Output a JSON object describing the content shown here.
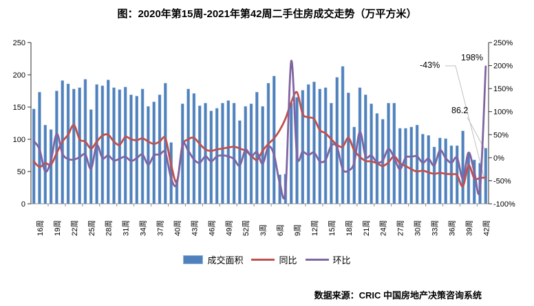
{
  "title": "图：2020年第15周-2021年第42周二手住房成交走势（万平方米）",
  "source": "数据来源：CRIC 中国房地产决策咨询系统",
  "legend": [
    {
      "label": "成交面积",
      "type": "bar"
    },
    {
      "label": "同比",
      "type": "line"
    },
    {
      "label": "环比",
      "type": "line"
    }
  ],
  "annotations": {
    "yoy_end": "-43%",
    "wow_end": "198%",
    "area_end": "86.2"
  },
  "colors": {
    "bar": "#4F81BD",
    "bar_border": "#95B3D7",
    "yoy_line": "#C0504D",
    "wow_line": "#8064A2",
    "leader": "#BFBFBF",
    "axis": "#2b2b2b",
    "category_axis": "#8c8c8c",
    "text": "#000000"
  },
  "chart_data": {
    "type": "bar+line",
    "title": "图：2020年第15周-2021年第42周二手住房成交走势（万平方米）",
    "left_axis": {
      "min": 0,
      "max": 250,
      "step": 50,
      "ticks": [
        "0",
        "50",
        "100",
        "150",
        "200",
        "250"
      ],
      "unit": "万平方米"
    },
    "right_axis": {
      "min": -100,
      "max": 250,
      "step": 50,
      "ticks": [
        "-100%",
        "-50%",
        "0%",
        "50%",
        "100%",
        "150%",
        "200%",
        "250%"
      ]
    },
    "x_tick_interval": 3,
    "x_tick_start_index": 1,
    "x_tick_labels": [
      "16周",
      "19周",
      "22周",
      "25周",
      "28周",
      "31周",
      "34周",
      "37周",
      "40周",
      "43周",
      "46周",
      "49周",
      "52周",
      "3周",
      "6周",
      "9周",
      "12周",
      "15周",
      "18周",
      "21周",
      "24周",
      "27周",
      "30周",
      "33周",
      "36周",
      "39周",
      "42周"
    ],
    "x_weeks": [
      "15周",
      "16周",
      "17周",
      "18周",
      "19周",
      "20周",
      "21周",
      "22周",
      "23周",
      "24周",
      "25周",
      "26周",
      "27周",
      "28周",
      "29周",
      "30周",
      "31周",
      "32周",
      "33周",
      "34周",
      "35周",
      "36周",
      "37周",
      "38周",
      "39周",
      "40周",
      "41周",
      "42周",
      "43周",
      "44周",
      "45周",
      "46周",
      "47周",
      "48周",
      "49周",
      "50周",
      "51周",
      "52周",
      "1周",
      "2周",
      "3周",
      "4周",
      "5周",
      "6周",
      "7周",
      "8周",
      "9周",
      "10周",
      "11周",
      "12周",
      "13周",
      "14周",
      "15周",
      "16周",
      "17周",
      "18周",
      "19周",
      "20周",
      "21周",
      "22周",
      "23周",
      "24周",
      "25周",
      "26周",
      "27周",
      "28周",
      "29周",
      "30周",
      "31周",
      "32周",
      "33周",
      "34周",
      "35周",
      "36周",
      "37周",
      "38周",
      "39周",
      "40周",
      "41周",
      "42周"
    ],
    "series": [
      {
        "name": "成交面积",
        "type": "bar",
        "axis": "left",
        "values": [
          147,
          173,
          122,
          115,
          175,
          191,
          186,
          178,
          180,
          193,
          146,
          185,
          183,
          192,
          180,
          177,
          181,
          169,
          167,
          178,
          151,
          158,
          169,
          187,
          95,
          37,
          155,
          178,
          171,
          152,
          156,
          144,
          148,
          156,
          160,
          156,
          129,
          151,
          155,
          173,
          151,
          187,
          198,
          45,
          46,
          156,
          165,
          176,
          185,
          189,
          178,
          180,
          156,
          196,
          213,
          172,
          119,
          180,
          169,
          155,
          140,
          131,
          156,
          156,
          117,
          117,
          119,
          122,
          108,
          106,
          88,
          102,
          101,
          90,
          90,
          113,
          79,
          68,
          63,
          86.2
        ]
      },
      {
        "name": "同比",
        "type": "line",
        "axis": "right",
        "values": [
          -8,
          -20,
          -12,
          -15,
          10,
          35,
          50,
          71,
          40,
          35,
          20,
          35,
          48,
          50,
          35,
          28,
          45,
          40,
          38,
          42,
          35,
          30,
          35,
          42,
          -15,
          -52,
          25,
          40,
          43,
          30,
          18,
          15,
          18,
          20,
          22,
          24,
          20,
          15,
          5,
          -5,
          15,
          30,
          42,
          60,
          85,
          120,
          142,
          95,
          88,
          84,
          60,
          53,
          40,
          28,
          24,
          43,
          16,
          2,
          -7,
          -8,
          -12,
          -18,
          -10,
          3,
          -12,
          -18,
          -25,
          -30,
          -28,
          -32,
          -35,
          -33,
          -35,
          -36,
          -38,
          -62,
          -17,
          -45,
          -44,
          -43
        ]
      },
      {
        "name": "环比",
        "type": "line",
        "axis": "right",
        "values": [
          36,
          18,
          -30,
          -6,
          52,
          9,
          -3,
          -4,
          1,
          7,
          -24,
          27,
          -1,
          5,
          -6,
          -2,
          2,
          -7,
          -1,
          7,
          -15,
          5,
          7,
          11,
          -45,
          -57,
          28,
          15,
          -4,
          -11,
          3,
          -8,
          3,
          5,
          3,
          -3,
          -17,
          17,
          3,
          12,
          -13,
          24,
          6,
          -55,
          -70,
          210,
          6,
          13,
          6,
          11,
          -8,
          -5,
          26,
          23,
          -25,
          -28,
          -11,
          56,
          3,
          5,
          -10,
          -6,
          19,
          0,
          -25,
          0,
          2,
          3,
          -11,
          -2,
          -17,
          16,
          -1,
          -11,
          0,
          -45,
          11,
          -30,
          -67,
          198
        ]
      }
    ],
    "annotated_points": {
      "last_week": "42周",
      "area": 86.2,
      "yoy_pct": -43,
      "wow_pct": 198
    }
  }
}
